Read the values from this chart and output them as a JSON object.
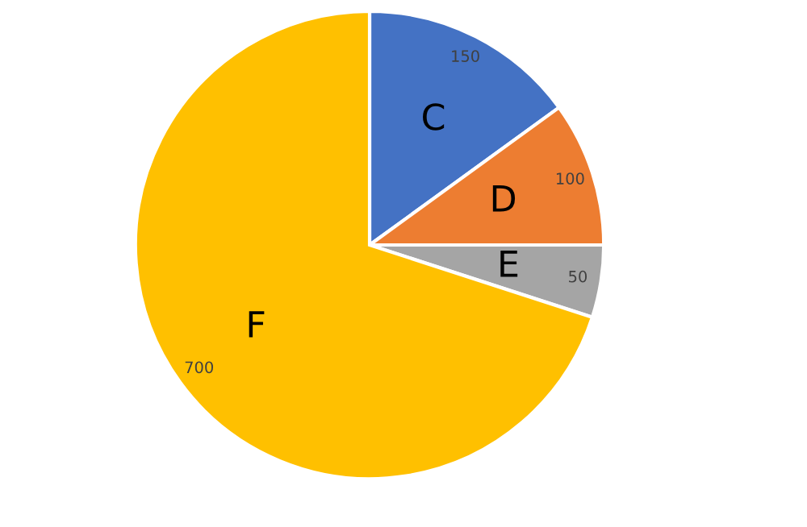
{
  "chart_data": {
    "type": "pie",
    "categories": [
      "C",
      "D",
      "E",
      "F"
    ],
    "values": [
      150,
      100,
      50,
      700
    ],
    "colors": [
      "#4472c4",
      "#ed7d31",
      "#a5a5a5",
      "#ffc000"
    ],
    "data_labels": true
  }
}
